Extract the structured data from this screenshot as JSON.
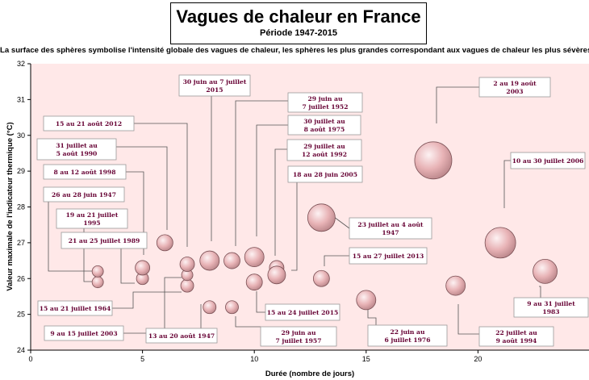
{
  "chart_data": {
    "type": "bubble",
    "title": "Vagues de chaleur en France",
    "subtitle": "Période 1947-2015",
    "caption": "La surface des sphères symbolise l'intensité globale des vagues de chaleur, les sphères les plus grandes correspondant aux vagues de chaleur les plus sévères",
    "xlabel": "Durée (nombre de jours)",
    "ylabel": "Valeur maximale de l'indicateur thermique (°C)",
    "xlim": [
      0,
      25
    ],
    "ylim": [
      24,
      32
    ],
    "xticks": [
      "0",
      "5",
      "10",
      "15",
      "20"
    ],
    "yticks": [
      "24",
      "25",
      "26",
      "27",
      "28",
      "29",
      "30",
      "31",
      "32"
    ],
    "grid": false,
    "background": "#ffe8e8",
    "bubble_color": "#e8b3b6",
    "label_color": "#660033",
    "points": [
      {
        "x": 3,
        "y": 25.9,
        "r": 7
      },
      {
        "x": 3,
        "y": 26.2,
        "r": 7
      },
      {
        "x": 5,
        "y": 26.0,
        "r": 7.5
      },
      {
        "x": 5,
        "y": 26.3,
        "r": 9
      },
      {
        "x": 6,
        "y": 27.0,
        "r": 10
      },
      {
        "x": 7,
        "y": 25.8,
        "r": 8
      },
      {
        "x": 7,
        "y": 26.1,
        "r": 7
      },
      {
        "x": 7,
        "y": 26.4,
        "r": 9
      },
      {
        "x": 8,
        "y": 25.2,
        "r": 8
      },
      {
        "x": 8,
        "y": 26.5,
        "r": 12
      },
      {
        "x": 9,
        "y": 25.2,
        "r": 8
      },
      {
        "x": 9,
        "y": 26.5,
        "r": 10
      },
      {
        "x": 10,
        "y": 25.9,
        "r": 10
      },
      {
        "x": 10,
        "y": 26.6,
        "r": 12
      },
      {
        "x": 11,
        "y": 26.3,
        "r": 9
      },
      {
        "x": 11,
        "y": 26.1,
        "r": 11
      },
      {
        "x": 13,
        "y": 27.7,
        "r": 17
      },
      {
        "x": 13,
        "y": 26.0,
        "r": 10
      },
      {
        "x": 15,
        "y": 25.4,
        "r": 12
      },
      {
        "x": 18,
        "y": 29.3,
        "r": 23
      },
      {
        "x": 19,
        "y": 25.8,
        "r": 12
      },
      {
        "x": 21,
        "y": 27.0,
        "r": 19
      },
      {
        "x": 23,
        "y": 26.2,
        "r": 15
      }
    ],
    "annotations": [
      {
        "lines": [
          "15 au 21 août 2012"
        ]
      },
      {
        "lines": [
          "31 juillet au",
          "5 août 1990"
        ]
      },
      {
        "lines": [
          "8 au 12 août 1998"
        ]
      },
      {
        "lines": [
          "26 au 28 juin 1947"
        ]
      },
      {
        "lines": [
          "19 au 21 juillet",
          "1995"
        ]
      },
      {
        "lines": [
          "21 au 25 juillet 1989"
        ]
      },
      {
        "lines": [
          "15 au 21 juillet 1964"
        ]
      },
      {
        "lines": [
          "9 au 15 juillet 2003"
        ]
      },
      {
        "lines": [
          "13 au 20 août 1947"
        ]
      },
      {
        "lines": [
          "30 juin au 7 juillet",
          "2015"
        ]
      },
      {
        "lines": [
          "29 juin au",
          "7 juillet 1952"
        ]
      },
      {
        "lines": [
          "30 juillet au",
          "8 août 1975"
        ]
      },
      {
        "lines": [
          "29 juillet au",
          "12 août 1992"
        ]
      },
      {
        "lines": [
          "18 au 28 juin 2005"
        ]
      },
      {
        "lines": [
          "15 au 24 juillet 2015"
        ]
      },
      {
        "lines": [
          "29 juin au",
          "7 juillet 1957"
        ]
      },
      {
        "lines": [
          "23 juillet au 4 août",
          "1947"
        ]
      },
      {
        "lines": [
          "15 au 27 juillet 2013"
        ]
      },
      {
        "lines": [
          "22 juin au",
          "6 juillet 1976"
        ]
      },
      {
        "lines": [
          "2 au 19 août",
          "2003"
        ]
      },
      {
        "lines": [
          "10 au 30 juillet 2006"
        ]
      },
      {
        "lines": [
          "9 au 31 juillet",
          "1983"
        ]
      },
      {
        "lines": [
          "22 juillet au",
          "9 août 1994"
        ]
      }
    ]
  }
}
